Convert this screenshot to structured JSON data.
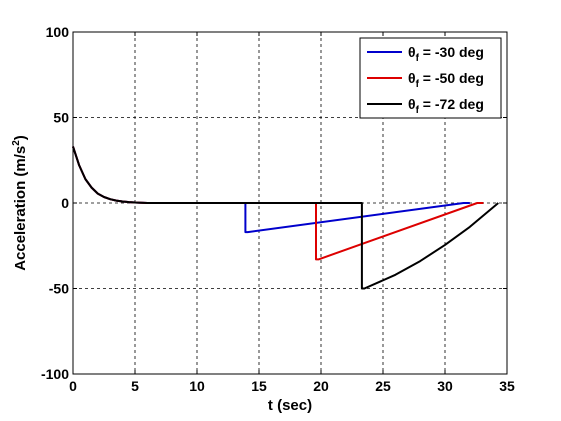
{
  "chart_data": {
    "type": "line",
    "title": "",
    "xlabel": "t (sec)",
    "ylabel_main": "Acceleration (m/s",
    "ylabel_sup": "2",
    "ylabel_close": ")",
    "xlim": [
      0,
      35
    ],
    "ylim": [
      -100,
      100
    ],
    "xticks": [
      0,
      5,
      10,
      15,
      20,
      25,
      30,
      35
    ],
    "yticks": [
      -100,
      -50,
      0,
      50,
      100
    ],
    "grid": true,
    "legend_position": "top-right",
    "series": [
      {
        "name_symbol": "θ",
        "name_sub": "f",
        "name_rest": " = -30 deg",
        "color": "#0000cc",
        "x": [
          0,
          0.5,
          1,
          1.5,
          2,
          2.5,
          3,
          3.5,
          4,
          4.5,
          5,
          6,
          10,
          13.9,
          13.9,
          14.1,
          31.5,
          32
        ],
        "y": [
          33,
          22,
          14,
          9,
          5.5,
          3.5,
          2.2,
          1.4,
          0.9,
          0.5,
          0.3,
          0,
          0,
          0,
          -17,
          -17,
          0,
          0
        ]
      },
      {
        "name_symbol": "θ",
        "name_sub": "f",
        "name_rest": " = -50 deg",
        "color": "#dd0000",
        "x": [
          0,
          0.5,
          1,
          1.5,
          2,
          2.5,
          3,
          3.5,
          4,
          4.5,
          5,
          6,
          10,
          19.6,
          19.6,
          19.8,
          32.6,
          33.1
        ],
        "y": [
          33,
          22,
          14,
          9,
          5.5,
          3.5,
          2.2,
          1.4,
          0.9,
          0.5,
          0.3,
          0,
          0,
          0,
          -33,
          -33,
          0,
          0
        ]
      },
      {
        "name_symbol": "θ",
        "name_sub": "f",
        "name_rest": " = -72 deg",
        "color": "#000000",
        "x": [
          0,
          0.5,
          1,
          1.5,
          2,
          2.5,
          3,
          3.5,
          4,
          4.5,
          5,
          6,
          10,
          23.3,
          23.3,
          23.5,
          26,
          28,
          30,
          32,
          34.3
        ],
        "y": [
          33,
          22,
          14,
          9,
          5.5,
          3.5,
          2.2,
          1.4,
          0.9,
          0.5,
          0.3,
          0,
          0,
          0,
          -50,
          -50,
          -42,
          -34,
          -24.5,
          -14,
          0
        ]
      }
    ]
  }
}
